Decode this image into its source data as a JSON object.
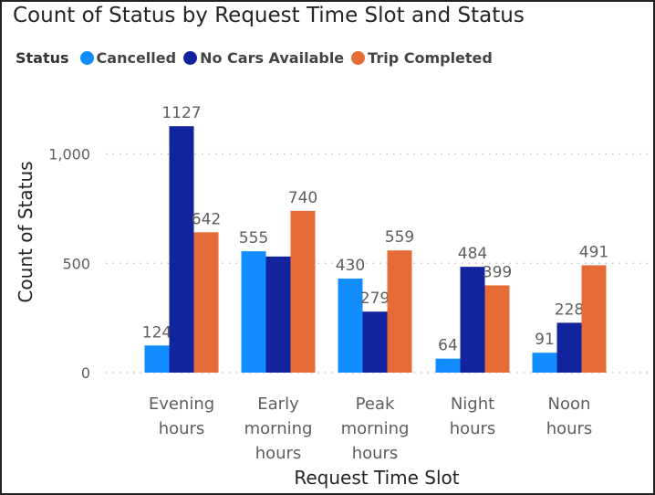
{
  "chart_data": {
    "type": "bar",
    "title": "Count of Status by Request Time Slot and Status",
    "xlabel": "Request Time Slot",
    "ylabel": "Count of Status",
    "legend_title": "Status",
    "legend_position": "top-left",
    "grid": true,
    "ylim": [
      0,
      1250
    ],
    "yticks": [
      0,
      500,
      1000
    ],
    "ytick_labels": [
      "0",
      "500",
      "1,000"
    ],
    "categories": [
      [
        "Evening",
        "hours"
      ],
      [
        "Early",
        "morning",
        "hours"
      ],
      [
        "Peak",
        "morning",
        "hours"
      ],
      [
        "Night",
        "hours"
      ],
      [
        "Noon",
        "hours"
      ]
    ],
    "series": [
      {
        "name": "Cancelled",
        "color": "#118dff",
        "values": [
          124,
          555,
          430,
          64,
          91
        ]
      },
      {
        "name": "No Cars Available",
        "color": "#12239e",
        "values": [
          1127,
          531,
          279,
          484,
          228
        ]
      },
      {
        "name": "Trip Completed",
        "color": "#e66c37",
        "values": [
          642,
          740,
          559,
          399,
          491
        ]
      }
    ],
    "data_labels": [
      [
        "124",
        "1127",
        "642"
      ],
      [
        "555",
        "",
        "740"
      ],
      [
        "430",
        "279",
        "559"
      ],
      [
        "64",
        "484",
        "399"
      ],
      [
        "91",
        "228",
        "491"
      ]
    ]
  }
}
